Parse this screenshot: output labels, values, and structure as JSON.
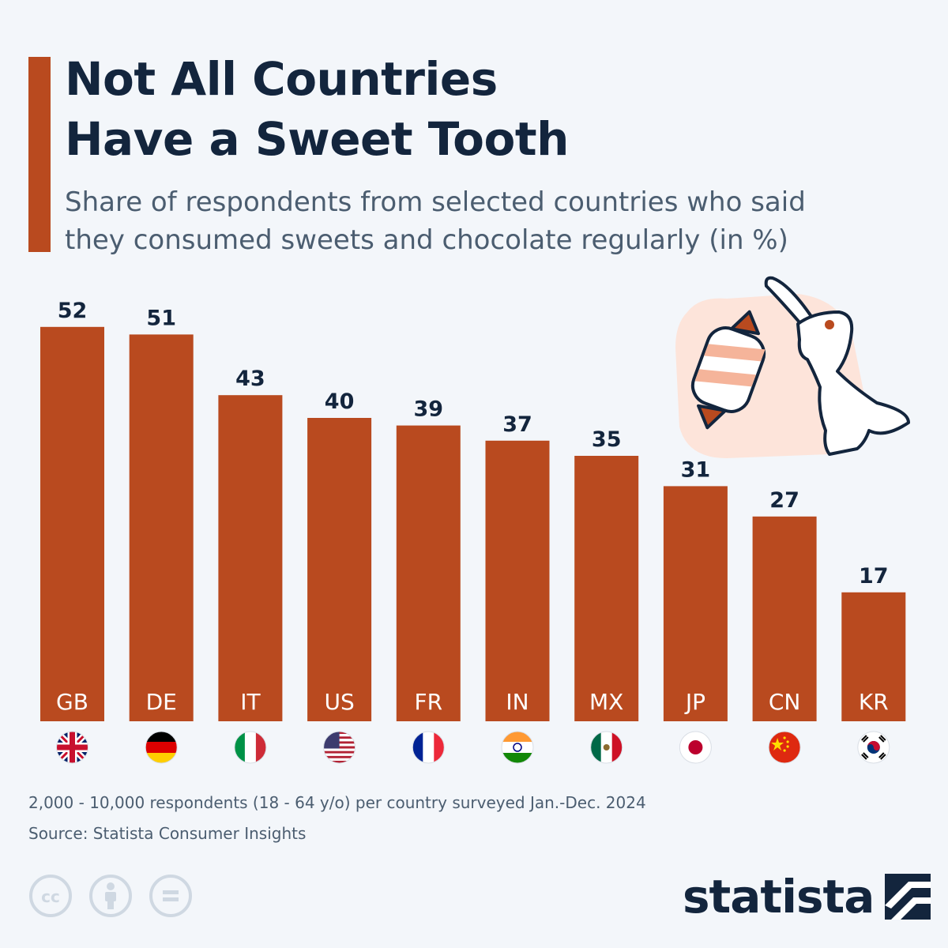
{
  "header": {
    "title_line1": "Not All Countries",
    "title_line2": "Have a Sweet Tooth",
    "subtitle_line1": "Share of respondents from selected countries who said",
    "subtitle_line2": "they consumed sweets and chocolate regularly (in %)"
  },
  "chart_data": {
    "type": "bar",
    "categories": [
      "GB",
      "DE",
      "IT",
      "US",
      "FR",
      "IN",
      "MX",
      "JP",
      "CN",
      "KR"
    ],
    "values": [
      52,
      51,
      43,
      40,
      39,
      37,
      35,
      31,
      27,
      17
    ],
    "title": "Not All Countries Have a Sweet Tooth",
    "subtitle": "Share of respondents from selected countries who said they consumed sweets and chocolate regularly (in %)",
    "xlabel": "",
    "ylabel": "",
    "ylim": [
      0,
      52
    ],
    "grid": false,
    "data_labels": true,
    "bar_color": "#b94a1f",
    "flags": [
      "uk-flag-icon",
      "germany-flag-icon",
      "italy-flag-icon",
      "usa-flag-icon",
      "france-flag-icon",
      "india-flag-icon",
      "mexico-flag-icon",
      "japan-flag-icon",
      "china-flag-icon",
      "south-korea-flag-icon"
    ]
  },
  "footer": {
    "note": "2,000 - 10,000 respondents (18 - 64 y/o) per country surveyed Jan.-Dec. 2024",
    "source": "Source: Statista Consumer Insights",
    "brand": "statista",
    "license_icons": [
      "creative-commons-icon",
      "attribution-icon",
      "no-derivatives-icon"
    ]
  },
  "illustration": {
    "icons": [
      "wrapped-candy-icon",
      "chocolate-bunny-icon"
    ]
  },
  "colors": {
    "accent": "#b94a1f",
    "title": "#13253d",
    "subtitle": "#4b5d70",
    "background": "#f3f6fa"
  }
}
